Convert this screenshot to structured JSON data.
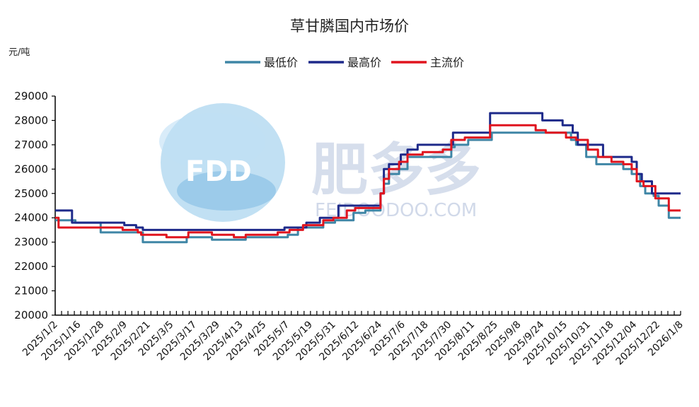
{
  "chart_data": {
    "type": "line",
    "title": "草甘膦国内市场价",
    "ylabel": "元/吨",
    "xlabel": "",
    "ylim": [
      20000,
      29000
    ],
    "yticks": [
      20000,
      21000,
      22000,
      23000,
      24000,
      25000,
      26000,
      27000,
      28000,
      29000
    ],
    "xlim": [
      "2025/1/2",
      "2026/1/8"
    ],
    "xtick_labels": [
      "2025/1/2",
      "2025/1/16",
      "2025/1/28",
      "2025/2/9",
      "2025/2/21",
      "2025/3/5",
      "2025/3/17",
      "2025/3/29",
      "2025/4/13",
      "2025/4/25",
      "2025/5/7",
      "2025/5/19",
      "2025/5/31",
      "2025/6/12",
      "2025/6/24",
      "2025/7/6",
      "2025/7/18",
      "2025/7/30",
      "2025/8/11",
      "2025/8/25",
      "2025/9/8",
      "2025/9/24",
      "2025/10/15",
      "2025/10/31",
      "2025/11/18",
      "2025/12/04",
      "2025/12/22",
      "2026/1/8"
    ],
    "legend_position": "top-center",
    "grid": false,
    "series": [
      {
        "name": "最低价",
        "color": "#3f86a6",
        "points": [
          [
            "2025/1/2",
            23900
          ],
          [
            "2025/1/14",
            23800
          ],
          [
            "2025/1/29",
            23400
          ],
          [
            "2025/2/21",
            23400
          ],
          [
            "2025/2/23",
            23000
          ],
          [
            "2025/3/20",
            23000
          ],
          [
            "2025/3/21",
            23200
          ],
          [
            "2025/4/5",
            23100
          ],
          [
            "2025/4/25",
            23200
          ],
          [
            "2025/5/20",
            23300
          ],
          [
            "2025/5/26",
            23600
          ],
          [
            "2025/6/10",
            23800
          ],
          [
            "2025/6/17",
            23900
          ],
          [
            "2025/6/28",
            24200
          ],
          [
            "2025/7/5",
            24300
          ],
          [
            "2025/7/13",
            24300
          ],
          [
            "2025/7/14",
            25000
          ],
          [
            "2025/7/16",
            25400
          ],
          [
            "2025/7/19",
            25800
          ],
          [
            "2025/7/25",
            26000
          ],
          [
            "2025/7/30",
            26500
          ],
          [
            "2025/8/25",
            26900
          ],
          [
            "2025/8/27",
            27000
          ],
          [
            "2025/9/4",
            27200
          ],
          [
            "2025/9/18",
            27500
          ],
          [
            "2025/10/30",
            27500
          ],
          [
            "2025/11/4",
            27200
          ],
          [
            "2025/11/7",
            27000
          ],
          [
            "2025/11/13",
            26500
          ],
          [
            "2025/11/19",
            26200
          ],
          [
            "2025/12/5",
            26000
          ],
          [
            "2025/12/10",
            25800
          ],
          [
            "2025/12/15",
            25300
          ],
          [
            "2025/12/18",
            25000
          ],
          [
            "2025/12/23",
            24900
          ],
          [
            "2025/12/26",
            24500
          ],
          [
            "2026/1/1",
            24000
          ],
          [
            "2026/1/8",
            24000
          ]
        ]
      },
      {
        "name": "最高价",
        "color": "#1e2a8a",
        "points": [
          [
            "2025/1/2",
            24300
          ],
          [
            "2025/1/11",
            24300
          ],
          [
            "2025/1/12",
            23800
          ],
          [
            "2025/2/11",
            23800
          ],
          [
            "2025/2/12",
            23700
          ],
          [
            "2025/2/19",
            23600
          ],
          [
            "2025/2/23",
            23500
          ],
          [
            "2025/5/17",
            23500
          ],
          [
            "2025/5/18",
            23600
          ],
          [
            "2025/5/31",
            23800
          ],
          [
            "2025/6/8",
            24000
          ],
          [
            "2025/6/19",
            24500
          ],
          [
            "2025/7/13",
            24500
          ],
          [
            "2025/7/14",
            25000
          ],
          [
            "2025/7/16",
            26000
          ],
          [
            "2025/7/19",
            26200
          ],
          [
            "2025/7/26",
            26600
          ],
          [
            "2025/7/30",
            26800
          ],
          [
            "2025/8/5",
            27000
          ],
          [
            "2025/8/24",
            27000
          ],
          [
            "2025/8/26",
            27500
          ],
          [
            "2025/9/15",
            27500
          ],
          [
            "2025/9/17",
            28300
          ],
          [
            "2025/10/16",
            28300
          ],
          [
            "2025/10/18",
            28000
          ],
          [
            "2025/10/30",
            27800
          ],
          [
            "2025/11/5",
            27500
          ],
          [
            "2025/11/8",
            27000
          ],
          [
            "2025/11/19",
            27000
          ],
          [
            "2025/11/23",
            26500
          ],
          [
            "2025/12/8",
            26500
          ],
          [
            "2025/12/10",
            26300
          ],
          [
            "2025/12/13",
            25800
          ],
          [
            "2025/12/16",
            25500
          ],
          [
            "2025/12/20",
            25500
          ],
          [
            "2025/12/22",
            25000
          ],
          [
            "2026/1/8",
            25000
          ]
        ]
      },
      {
        "name": "主流价",
        "color": "#e0141e",
        "points": [
          [
            "2025/1/2",
            24000
          ],
          [
            "2025/1/4",
            23600
          ],
          [
            "2025/2/10",
            23600
          ],
          [
            "2025/2/11",
            23500
          ],
          [
            "2025/2/20",
            23400
          ],
          [
            "2025/2/22",
            23300
          ],
          [
            "2025/3/8",
            23300
          ],
          [
            "2025/3/9",
            23200
          ],
          [
            "2025/3/21",
            23200
          ],
          [
            "2025/3/22",
            23400
          ],
          [
            "2025/4/5",
            23300
          ],
          [
            "2025/4/18",
            23200
          ],
          [
            "2025/4/25",
            23300
          ],
          [
            "2025/5/14",
            23400
          ],
          [
            "2025/5/21",
            23500
          ],
          [
            "2025/5/29",
            23700
          ],
          [
            "2025/6/10",
            23900
          ],
          [
            "2025/6/16",
            24000
          ],
          [
            "2025/6/24",
            24300
          ],
          [
            "2025/6/29",
            24400
          ],
          [
            "2025/7/12",
            24400
          ],
          [
            "2025/7/14",
            25000
          ],
          [
            "2025/7/16",
            25600
          ],
          [
            "2025/7/19",
            26000
          ],
          [
            "2025/7/25",
            26300
          ],
          [
            "2025/7/30",
            26600
          ],
          [
            "2025/8/8",
            26700
          ],
          [
            "2025/8/20",
            26800
          ],
          [
            "2025/8/25",
            27200
          ],
          [
            "2025/9/2",
            27300
          ],
          [
            "2025/9/17",
            27800
          ],
          [
            "2025/10/11",
            27800
          ],
          [
            "2025/10/14",
            27600
          ],
          [
            "2025/10/20",
            27500
          ],
          [
            "2025/11/1",
            27300
          ],
          [
            "2025/11/7",
            27200
          ],
          [
            "2025/11/14",
            26800
          ],
          [
            "2025/11/20",
            26500
          ],
          [
            "2025/11/28",
            26300
          ],
          [
            "2025/12/5",
            26200
          ],
          [
            "2025/12/10",
            26000
          ],
          [
            "2025/12/13",
            25500
          ],
          [
            "2025/12/17",
            25300
          ],
          [
            "2025/12/24",
            24800
          ],
          [
            "2026/1/1",
            24300
          ],
          [
            "2026/1/8",
            24300
          ]
        ]
      }
    ]
  },
  "watermark": {
    "logo_text": "FDD",
    "brand_cn": "肥多多",
    "brand_en": "FEIDOODOO.COM"
  }
}
